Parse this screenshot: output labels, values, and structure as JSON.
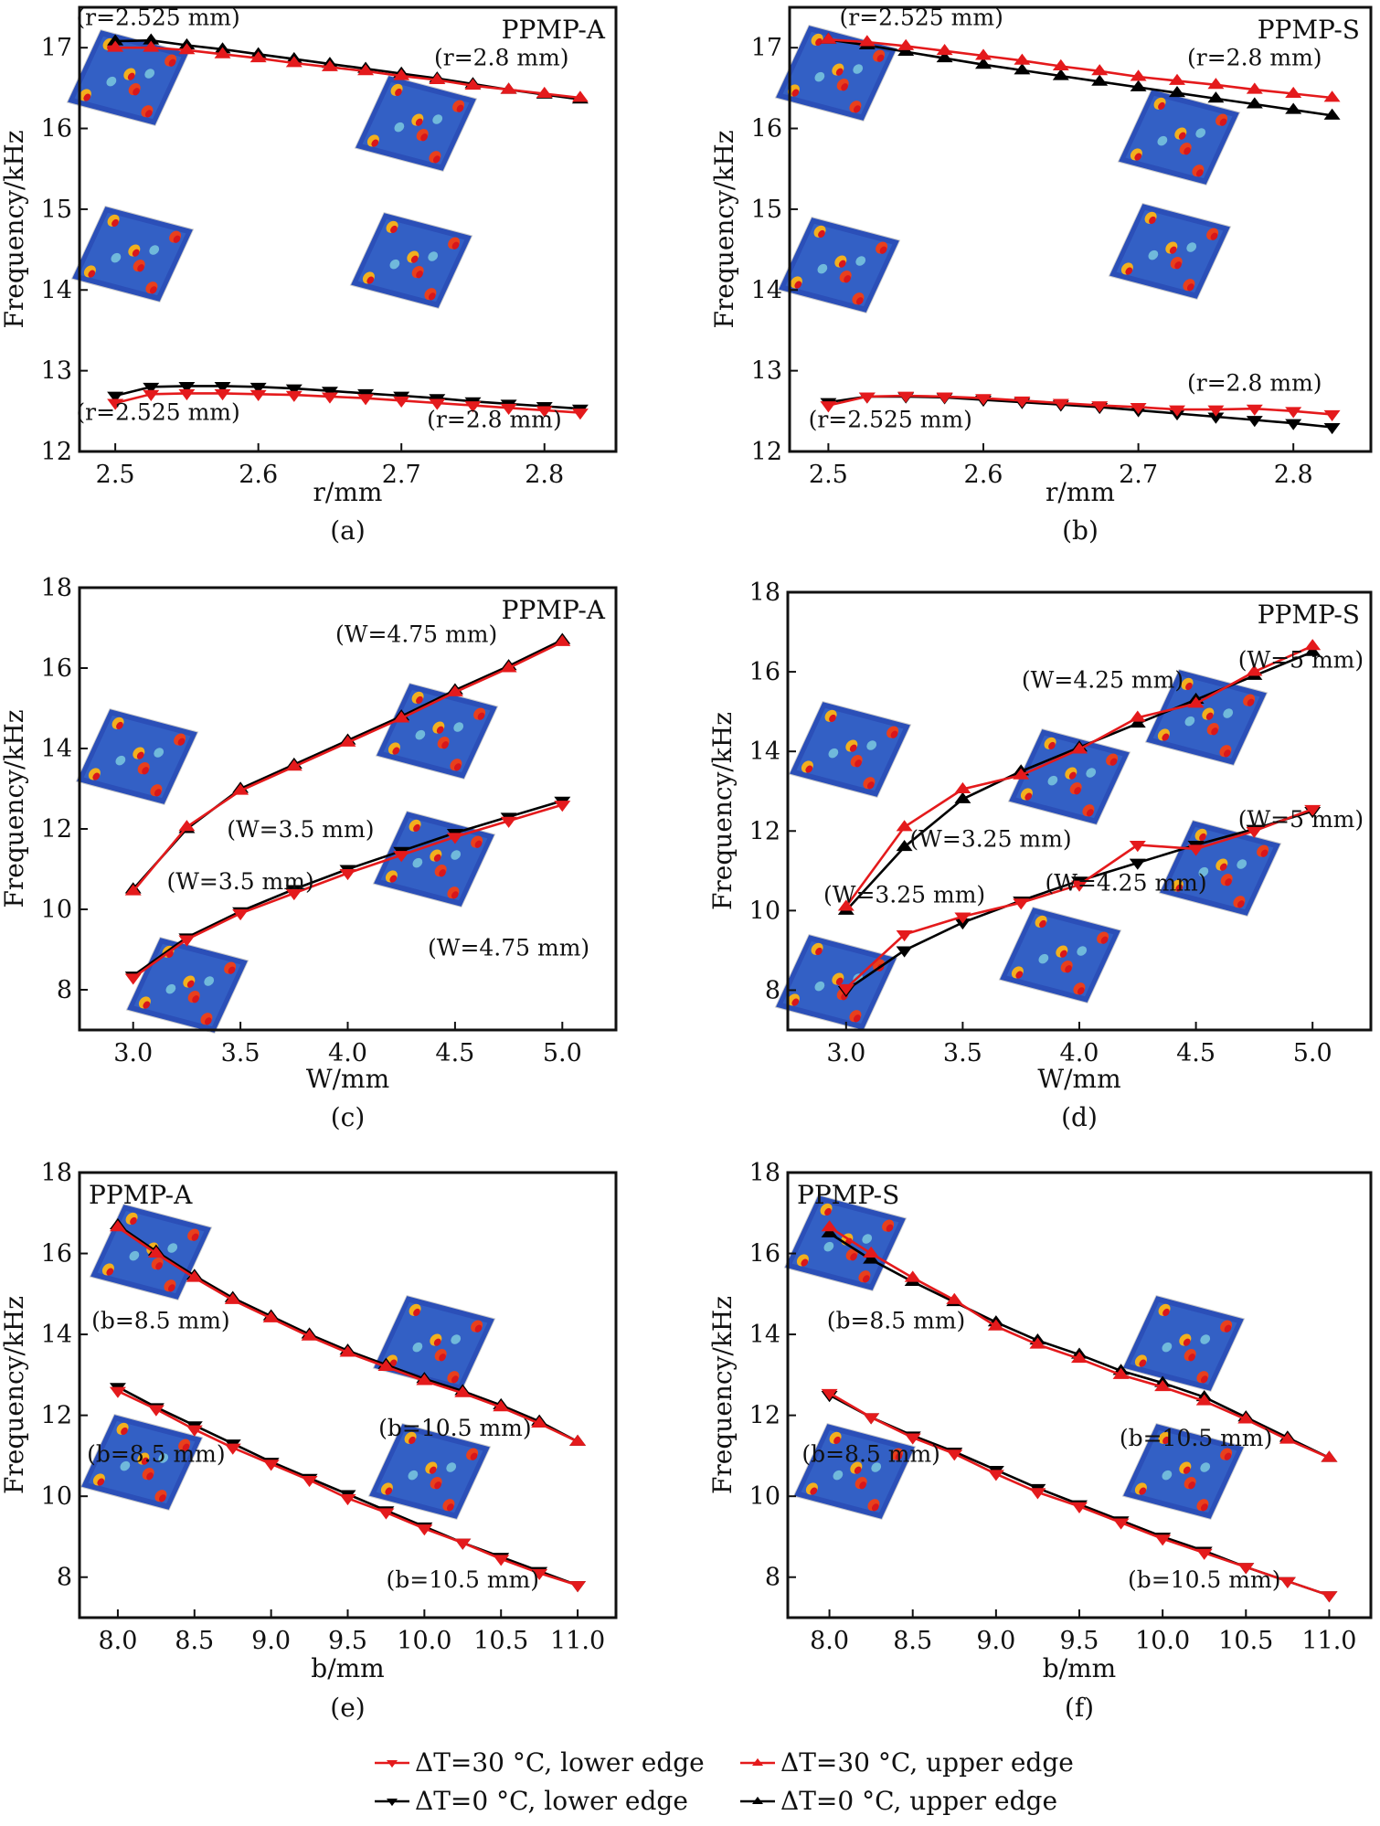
{
  "legend": {
    "items": [
      {
        "label": "ΔT=30 °C, lower edge",
        "color": "#e41a1c",
        "marker": "down"
      },
      {
        "label": "ΔT=30 °C, upper edge",
        "color": "#e41a1c",
        "marker": "up"
      },
      {
        "label": "ΔT=0 °C, lower edge",
        "color": "#000000",
        "marker": "down"
      },
      {
        "label": "ΔT=0 °C, upper edge",
        "color": "#000000",
        "marker": "up"
      }
    ]
  },
  "chart_data": [
    {
      "panel": "(a)",
      "type": "line",
      "title": "PPMP-A",
      "xlabel": "r/mm",
      "ylabel": "Frequency/kHz",
      "xlim": [
        2.475,
        2.85
      ],
      "ylim": [
        12,
        17.5
      ],
      "xticks": [
        "2.5",
        "2.6",
        "2.7",
        "2.8"
      ],
      "xtick_values": [
        2.5,
        2.6,
        2.7,
        2.8
      ],
      "yticks": [
        "12",
        "13",
        "14",
        "15",
        "16",
        "17"
      ],
      "ytick_values": [
        12,
        13,
        14,
        15,
        16,
        17
      ],
      "x": [
        2.5,
        2.525,
        2.55,
        2.575,
        2.6,
        2.625,
        2.65,
        2.675,
        2.7,
        2.725,
        2.75,
        2.775,
        2.8,
        2.825
      ],
      "series": [
        {
          "name": "ΔT=0 °C, upper edge",
          "color": "#000000",
          "marker": "up",
          "values": [
            17.08,
            17.09,
            17.03,
            16.98,
            16.92,
            16.86,
            16.8,
            16.74,
            16.68,
            16.62,
            16.55,
            16.48,
            16.42,
            16.36
          ]
        },
        {
          "name": "ΔT=30 °C, upper edge",
          "color": "#e41a1c",
          "marker": "up",
          "values": [
            17.0,
            17.0,
            16.97,
            16.92,
            16.87,
            16.81,
            16.76,
            16.71,
            16.65,
            16.6,
            16.53,
            16.48,
            16.43,
            16.38
          ]
        },
        {
          "name": "ΔT=0 °C, lower edge",
          "color": "#000000",
          "marker": "down",
          "values": [
            12.69,
            12.8,
            12.81,
            12.81,
            12.8,
            12.78,
            12.75,
            12.72,
            12.69,
            12.66,
            12.62,
            12.59,
            12.56,
            12.53
          ]
        },
        {
          "name": "ΔT=30 °C, lower edge",
          "color": "#e41a1c",
          "marker": "down",
          "values": [
            12.6,
            12.71,
            12.72,
            12.72,
            12.71,
            12.7,
            12.68,
            12.66,
            12.63,
            12.6,
            12.57,
            12.54,
            12.51,
            12.48
          ]
        }
      ],
      "annotations": [
        {
          "text": "(r=2.525 mm)",
          "x": 2.53,
          "y": 17.28
        },
        {
          "text": "(r=2.8 mm)",
          "x": 2.77,
          "y": 16.78
        },
        {
          "text": "(r=2.525 mm)",
          "x": 2.53,
          "y": 12.39
        },
        {
          "text": "(r=2.8 mm)",
          "x": 2.765,
          "y": 12.3
        }
      ],
      "title_position": "top-right"
    },
    {
      "panel": "(b)",
      "type": "line",
      "title": "PPMP-S",
      "xlabel": "r/mm",
      "ylabel": "Frequency/kHz",
      "xlim": [
        2.475,
        2.85
      ],
      "ylim": [
        12,
        17.5
      ],
      "xticks": [
        "2.5",
        "2.6",
        "2.7",
        "2.8"
      ],
      "xtick_values": [
        2.5,
        2.6,
        2.7,
        2.8
      ],
      "yticks": [
        "12",
        "13",
        "14",
        "15",
        "16",
        "17"
      ],
      "ytick_values": [
        12,
        13,
        14,
        15,
        16,
        17
      ],
      "x": [
        2.5,
        2.525,
        2.55,
        2.575,
        2.6,
        2.625,
        2.65,
        2.675,
        2.7,
        2.725,
        2.75,
        2.775,
        2.8,
        2.825
      ],
      "series": [
        {
          "name": "ΔT=0 °C, upper edge",
          "color": "#000000",
          "marker": "up",
          "values": [
            17.1,
            17.03,
            16.95,
            16.87,
            16.79,
            16.72,
            16.65,
            16.58,
            16.51,
            16.44,
            16.37,
            16.3,
            16.23,
            16.16
          ]
        },
        {
          "name": "ΔT=30 °C, upper edge",
          "color": "#e41a1c",
          "marker": "up",
          "values": [
            17.1,
            17.07,
            17.02,
            16.96,
            16.9,
            16.84,
            16.77,
            16.71,
            16.64,
            16.59,
            16.54,
            16.48,
            16.43,
            16.38
          ]
        },
        {
          "name": "ΔT=0 °C, lower edge",
          "color": "#000000",
          "marker": "down",
          "values": [
            12.61,
            12.68,
            12.68,
            12.67,
            12.64,
            12.61,
            12.58,
            12.55,
            12.51,
            12.47,
            12.43,
            12.39,
            12.35,
            12.3
          ]
        },
        {
          "name": "ΔT=30 °C, lower edge",
          "color": "#e41a1c",
          "marker": "down",
          "values": [
            12.57,
            12.68,
            12.69,
            12.68,
            12.66,
            12.63,
            12.6,
            12.57,
            12.55,
            12.52,
            12.52,
            12.53,
            12.5,
            12.46
          ]
        }
      ],
      "annotations": [
        {
          "text": "(r=2.525 mm)",
          "x": 2.56,
          "y": 17.28
        },
        {
          "text": "(r=2.8 mm)",
          "x": 2.775,
          "y": 16.78
        },
        {
          "text": "(r=2.8 mm)",
          "x": 2.775,
          "y": 12.75
        },
        {
          "text": "(r=2.525 mm)",
          "x": 2.54,
          "y": 12.3
        }
      ],
      "title_position": "top-right"
    },
    {
      "panel": "(c)",
      "type": "line",
      "title": "PPMP-A",
      "xlabel": "W/mm",
      "ylabel": "Frequency/kHz",
      "xlim": [
        2.75,
        5.25
      ],
      "ylim": [
        7,
        18
      ],
      "xticks": [
        "3.0",
        "3.5",
        "4.0",
        "4.5",
        "5.0"
      ],
      "xtick_values": [
        3.0,
        3.5,
        4.0,
        4.5,
        5.0
      ],
      "yticks": [
        "8",
        "10",
        "12",
        "14",
        "16",
        "18"
      ],
      "ytick_values": [
        8,
        10,
        12,
        14,
        16,
        18
      ],
      "x": [
        3.0,
        3.25,
        3.5,
        3.75,
        4.0,
        4.25,
        4.5,
        4.75,
        5.0
      ],
      "series": [
        {
          "name": "ΔT=0 °C, upper edge",
          "color": "#000000",
          "marker": "up",
          "values": [
            10.5,
            12.0,
            13.0,
            13.6,
            14.2,
            14.8,
            15.45,
            16.05,
            16.7
          ]
        },
        {
          "name": "ΔT=30 °C, upper edge",
          "color": "#e41a1c",
          "marker": "up",
          "values": [
            10.45,
            12.05,
            12.95,
            13.55,
            14.15,
            14.75,
            15.4,
            16.0,
            16.65
          ]
        },
        {
          "name": "ΔT=0 °C, lower edge",
          "color": "#000000",
          "marker": "down",
          "values": [
            8.35,
            9.3,
            9.95,
            10.5,
            11.0,
            11.45,
            11.9,
            12.3,
            12.7
          ]
        },
        {
          "name": "ΔT=30 °C, lower edge",
          "color": "#e41a1c",
          "marker": "down",
          "values": [
            8.3,
            9.25,
            9.9,
            10.4,
            10.9,
            11.35,
            11.8,
            12.2,
            12.6
          ]
        }
      ],
      "annotations": [
        {
          "text": "(W=4.75 mm)",
          "x": 4.32,
          "y": 16.65
        },
        {
          "text": "(W=3.5 mm)",
          "x": 3.78,
          "y": 11.8
        },
        {
          "text": "(W=3.5 mm)",
          "x": 3.5,
          "y": 10.5
        },
        {
          "text": "(W=4.75 mm)",
          "x": 4.75,
          "y": 8.85
        }
      ],
      "title_position": "top-right"
    },
    {
      "panel": "(d)",
      "type": "line",
      "title": "PPMP-S",
      "xlabel": "W/mm",
      "ylabel": "Frequency/kHz",
      "xlim": [
        2.75,
        5.25
      ],
      "ylim": [
        7,
        18
      ],
      "xticks": [
        "3.0",
        "3.5",
        "4.0",
        "4.5",
        "5.0"
      ],
      "xtick_values": [
        3.0,
        3.5,
        4.0,
        4.5,
        5.0
      ],
      "yticks": [
        "8",
        "10",
        "12",
        "14",
        "16",
        "18"
      ],
      "ytick_values": [
        8,
        10,
        12,
        14,
        16,
        18
      ],
      "x": [
        3.0,
        3.25,
        3.5,
        3.75,
        4.0,
        4.25,
        4.5,
        4.75,
        5.0
      ],
      "series": [
        {
          "name": "ΔT=0 °C, upper edge",
          "color": "#000000",
          "marker": "up",
          "values": [
            10.0,
            11.6,
            12.8,
            13.5,
            14.1,
            14.7,
            15.3,
            15.9,
            16.5
          ]
        },
        {
          "name": "ΔT=30 °C, upper edge",
          "color": "#e41a1c",
          "marker": "up",
          "values": [
            10.1,
            12.1,
            13.05,
            13.4,
            14.05,
            14.85,
            15.2,
            16.0,
            16.65
          ]
        },
        {
          "name": "ΔT=0 °C, lower edge",
          "color": "#000000",
          "marker": "down",
          "values": [
            8.0,
            9.0,
            9.7,
            10.25,
            10.75,
            11.2,
            11.65,
            12.05,
            12.5
          ]
        },
        {
          "name": "ΔT=30 °C, lower edge",
          "color": "#e41a1c",
          "marker": "down",
          "values": [
            8.05,
            9.4,
            9.85,
            10.2,
            10.65,
            11.65,
            11.55,
            12.0,
            12.55
          ]
        }
      ],
      "annotations": [
        {
          "text": "(W=4.25 mm)",
          "x": 4.1,
          "y": 15.6
        },
        {
          "text": "(W=5 mm)",
          "x": 4.95,
          "y": 16.1
        },
        {
          "text": "(W=3.25 mm)",
          "x": 3.62,
          "y": 11.6
        },
        {
          "text": "(W=5 mm)",
          "x": 4.95,
          "y": 12.1
        },
        {
          "text": "(W=4.25 mm)",
          "x": 4.2,
          "y": 10.5
        },
        {
          "text": "(W=3.25 mm)",
          "x": 3.25,
          "y": 10.2
        }
      ],
      "title_position": "top-right"
    },
    {
      "panel": "(e)",
      "type": "line",
      "title": "PPMP-A",
      "xlabel": "b/mm",
      "ylabel": "Frequency/kHz",
      "xlim": [
        7.75,
        11.25
      ],
      "ylim": [
        7,
        18
      ],
      "xticks": [
        "8.0",
        "8.5",
        "9.0",
        "9.5",
        "10.0",
        "10.5",
        "11.0"
      ],
      "xtick_values": [
        8.0,
        8.5,
        9.0,
        9.5,
        10.0,
        10.5,
        11.0
      ],
      "yticks": [
        "8",
        "10",
        "12",
        "14",
        "16",
        "18"
      ],
      "ytick_values": [
        8,
        10,
        12,
        14,
        16,
        18
      ],
      "x": [
        8.0,
        8.25,
        8.5,
        8.75,
        9.0,
        9.25,
        9.5,
        9.75,
        10.0,
        10.25,
        10.5,
        10.75,
        11.0
      ],
      "series": [
        {
          "name": "ΔT=0 °C, upper edge",
          "color": "#000000",
          "marker": "up",
          "values": [
            16.7,
            16.05,
            15.45,
            14.9,
            14.45,
            14.0,
            13.6,
            13.25,
            12.9,
            12.6,
            12.25,
            11.85,
            11.35
          ]
        },
        {
          "name": "ΔT=30 °C, upper edge",
          "color": "#e41a1c",
          "marker": "up",
          "values": [
            16.65,
            16.0,
            15.4,
            14.85,
            14.4,
            13.95,
            13.55,
            13.2,
            12.85,
            12.55,
            12.2,
            11.8,
            11.35
          ]
        },
        {
          "name": "ΔT=0 °C, lower edge",
          "color": "#000000",
          "marker": "down",
          "values": [
            12.7,
            12.2,
            11.75,
            11.3,
            10.85,
            10.45,
            10.05,
            9.65,
            9.25,
            8.85,
            8.5,
            8.15,
            7.8
          ]
        },
        {
          "name": "ΔT=30 °C, lower edge",
          "color": "#e41a1c",
          "marker": "down",
          "values": [
            12.6,
            12.15,
            11.65,
            11.2,
            10.8,
            10.4,
            9.95,
            9.6,
            9.2,
            8.85,
            8.45,
            8.1,
            7.8
          ]
        }
      ],
      "annotations": [
        {
          "text": "(b=8.5 mm)",
          "x": 8.28,
          "y": 14.15
        },
        {
          "text": "(b=10.5 mm)",
          "x": 10.2,
          "y": 11.5
        },
        {
          "text": "(b=8.5 mm)",
          "x": 8.25,
          "y": 10.85
        },
        {
          "text": "(b=10.5 mm)",
          "x": 10.25,
          "y": 7.75
        }
      ],
      "title_position": "top-left"
    },
    {
      "panel": "(f)",
      "type": "line",
      "title": "PPMP-S",
      "xlabel": "b/mm",
      "ylabel": "Frequency/kHz",
      "xlim": [
        7.75,
        11.25
      ],
      "ylim": [
        7,
        18
      ],
      "xticks": [
        "8.0",
        "8.5",
        "9.0",
        "9.5",
        "10.0",
        "10.5",
        "11.0"
      ],
      "xtick_values": [
        8.0,
        8.5,
        9.0,
        9.5,
        10.0,
        10.5,
        11.0
      ],
      "yticks": [
        "8",
        "10",
        "12",
        "14",
        "16",
        "18"
      ],
      "ytick_values": [
        8,
        10,
        12,
        14,
        16,
        18
      ],
      "x": [
        8.0,
        8.25,
        8.5,
        8.75,
        9.0,
        9.25,
        9.5,
        9.75,
        10.0,
        10.25,
        10.5,
        10.75,
        11.0
      ],
      "series": [
        {
          "name": "ΔT=0 °C, upper edge",
          "color": "#000000",
          "marker": "up",
          "values": [
            16.5,
            15.85,
            15.3,
            14.8,
            14.3,
            13.85,
            13.5,
            13.1,
            12.8,
            12.45,
            11.95,
            11.45,
            10.95
          ]
        },
        {
          "name": "ΔT=30 °C, upper edge",
          "color": "#e41a1c",
          "marker": "up",
          "values": [
            16.65,
            16.0,
            15.4,
            14.85,
            14.2,
            13.75,
            13.4,
            13.0,
            12.7,
            12.35,
            11.9,
            11.4,
            10.95
          ]
        },
        {
          "name": "ΔT=0 °C, lower edge",
          "color": "#000000",
          "marker": "down",
          "values": [
            12.5,
            11.95,
            11.5,
            11.1,
            10.65,
            10.2,
            9.8,
            9.4,
            9.0,
            8.65,
            8.25,
            7.9,
            7.55
          ]
        },
        {
          "name": "ΔT=30 °C, lower edge",
          "color": "#e41a1c",
          "marker": "down",
          "values": [
            12.55,
            11.95,
            11.45,
            11.05,
            10.55,
            10.1,
            9.75,
            9.35,
            8.95,
            8.6,
            8.25,
            7.9,
            7.55
          ]
        }
      ],
      "annotations": [
        {
          "text": "(b=8.5 mm)",
          "x": 8.4,
          "y": 14.15
        },
        {
          "text": "(b=10.5 mm)",
          "x": 10.2,
          "y": 11.25
        },
        {
          "text": "(b=8.5 mm)",
          "x": 8.25,
          "y": 10.85
        },
        {
          "text": "(b=10.5 mm)",
          "x": 10.25,
          "y": 7.75
        }
      ],
      "title_position": "top-left"
    }
  ]
}
